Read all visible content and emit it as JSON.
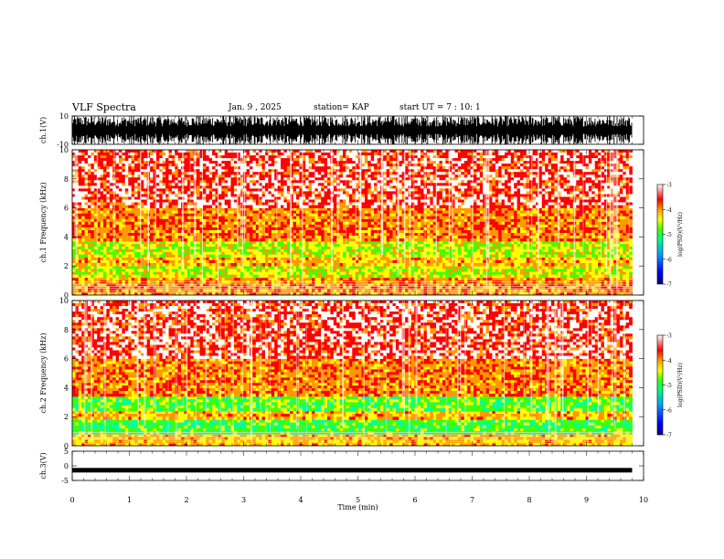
{
  "header": {
    "title": "VLF Spectra",
    "date": "Jan. 9 , 2025",
    "station": "station= KAP",
    "start": "start UT =  7 : 10: 1"
  },
  "chart_data": [
    {
      "type": "line",
      "panel": "ch1-waveform",
      "ylabel": "ch.1(V)",
      "ylim": [
        -10,
        10
      ],
      "yticks": [
        "10",
        "-10"
      ],
      "x_range_min": [
        0,
        9.8
      ],
      "description_values": "dense oscillating waveform spanning roughly -8 to +8 V"
    },
    {
      "type": "heatmap",
      "panel": "ch1-spectrogram",
      "ylabel": "ch.1 Frequency (kHz)",
      "ylim": [
        0,
        10
      ],
      "yticks": [
        "0",
        "2",
        "4",
        "6",
        "8",
        "10"
      ],
      "x_range_min": [
        0,
        9.8
      ],
      "bands": [
        {
          "from_khz": 0,
          "to_khz": 1.2,
          "level": -4.0
        },
        {
          "from_khz": 1.2,
          "to_khz": 2.0,
          "level": -4.6
        },
        {
          "from_khz": 2.0,
          "to_khz": 2.6,
          "level": -4.2
        },
        {
          "from_khz": 2.6,
          "to_khz": 3.7,
          "level": -4.6
        },
        {
          "from_khz": 3.7,
          "to_khz": 6.0,
          "level": -3.9
        },
        {
          "from_khz": 6.0,
          "to_khz": 10.0,
          "level": -3.4
        }
      ],
      "colorbar": {
        "label": "log(PSD)(V²/Hz)",
        "range": [
          -7,
          -3
        ],
        "ticks": [
          "-3",
          "-4",
          "-5",
          "-6",
          "-7"
        ]
      }
    },
    {
      "type": "heatmap",
      "panel": "ch2-spectrogram",
      "ylabel": "ch.2 Frequency (kHz)",
      "ylim": [
        0,
        10
      ],
      "yticks": [
        "0",
        "2",
        "4",
        "6",
        "8",
        "10"
      ],
      "x_range_min": [
        0,
        9.8
      ],
      "bands": [
        {
          "from_khz": 0,
          "to_khz": 0.8,
          "level": -4.2
        },
        {
          "from_khz": 0.8,
          "to_khz": 1.8,
          "level": -5.1
        },
        {
          "from_khz": 1.8,
          "to_khz": 2.4,
          "level": -4.2
        },
        {
          "from_khz": 2.4,
          "to_khz": 3.4,
          "level": -5.0
        },
        {
          "from_khz": 3.4,
          "to_khz": 6.0,
          "level": -3.9
        },
        {
          "from_khz": 6.0,
          "to_khz": 10.0,
          "level": -3.4
        }
      ],
      "colorbar": {
        "label": "log(PSD)(V²/Hz)",
        "range": [
          -7,
          -3
        ],
        "ticks": [
          "-3",
          "-4",
          "-5",
          "-6",
          "-7"
        ]
      }
    },
    {
      "type": "line",
      "panel": "ch3-waveform",
      "ylabel": "ch.3(V)",
      "ylim": [
        -5,
        5
      ],
      "yticks": [
        "5",
        "0",
        "-5"
      ],
      "x_range_min": [
        0,
        9.8
      ],
      "description_values": "flat band near -1 V"
    }
  ],
  "xaxis": {
    "label": "Time (min)",
    "range": [
      0,
      10
    ],
    "ticks": [
      "0",
      "1",
      "2",
      "3",
      "4",
      "5",
      "6",
      "7",
      "8",
      "9",
      "10"
    ]
  },
  "colors": {
    "cmap": [
      "#000080",
      "#0000ff",
      "#00a0ff",
      "#00ffa0",
      "#40ff00",
      "#ffff00",
      "#ff9900",
      "#ff0000",
      "#ffffff"
    ]
  }
}
